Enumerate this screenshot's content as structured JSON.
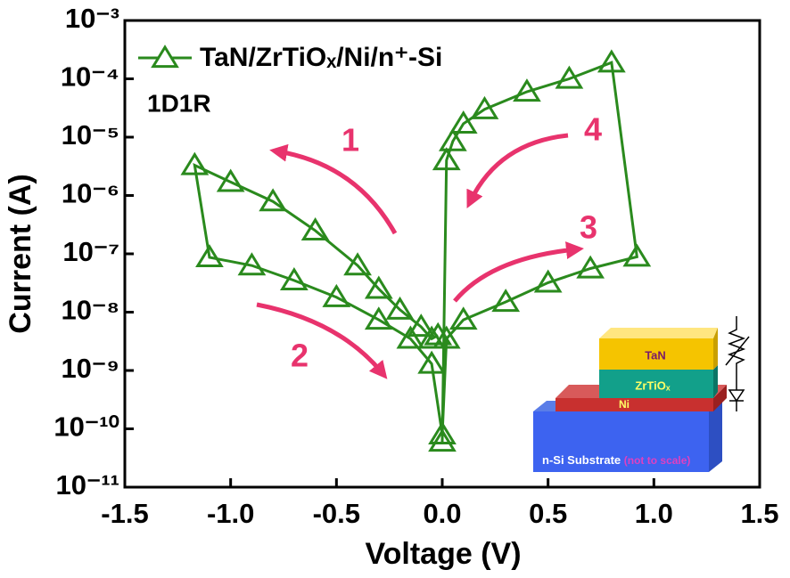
{
  "chart_data": {
    "type": "line",
    "xlabel": "Voltage (V)",
    "ylabel": "Current (A)",
    "log_y": true,
    "xlim": [
      -1.5,
      1.5
    ],
    "xticks": [
      -1.5,
      {
        "value": -1,
        "label": "-1.0"
      },
      -0.5,
      {
        "value": 0,
        "label": "0.0"
      },
      0.5,
      {
        "value": 1,
        "label": "1.0"
      },
      1.5
    ],
    "ylim": [
      1e-11,
      0.001
    ],
    "yticks": [
      {
        "value": 1e-11,
        "label": "10⁻¹¹"
      },
      {
        "value": 1e-10,
        "label": "10⁻¹⁰"
      },
      {
        "value": 1e-09,
        "label": "10⁻⁹"
      },
      {
        "value": 1e-08,
        "label": "10⁻⁸"
      },
      {
        "value": 1e-07,
        "label": "10⁻⁷"
      },
      {
        "value": 1e-06,
        "label": "10⁻⁶"
      },
      {
        "value": 1e-05,
        "label": "10⁻⁵"
      },
      {
        "value": 0.0001,
        "label": "10⁻⁴"
      },
      {
        "value": 0.001,
        "label": "10⁻³"
      }
    ],
    "series": [
      {
        "name": "TaN/ZrTiOₓ/Ni/n⁺-Si",
        "color": "#2a8a1d",
        "marker": "triangle",
        "x": [
          -0.02,
          -0.05,
          -0.1,
          -0.2,
          -0.3,
          -0.4,
          -0.6,
          -0.8,
          -1.0,
          -1.17,
          -1.1,
          -0.9,
          -0.7,
          -0.5,
          -0.3,
          -0.15,
          -0.05,
          0.0,
          0.02,
          0.1,
          0.3,
          0.5,
          0.7,
          0.92,
          0.8,
          0.6,
          0.4,
          0.2,
          0.1,
          0.05,
          0.02,
          0.0
        ],
        "values": [
          4e-09,
          3.5e-09,
          5.6e-09,
          1.1e-08,
          2.5e-08,
          6.3e-08,
          2.5e-07,
          7.9e-07,
          1.7e-06,
          3.3e-06,
          8.7e-08,
          6.3e-08,
          3.5e-08,
          1.8e-08,
          7.4e-09,
          3.5e-09,
          1.3e-09,
          8e-11,
          3.5e-09,
          7.4e-09,
          1.5e-08,
          3.2e-08,
          5.6e-08,
          8.9e-08,
          0.00019,
          0.0001,
          6e-05,
          3e-05,
          1.7e-05,
          8.5e-06,
          4e-06,
          6e-11
        ]
      }
    ],
    "annotations": {
      "device": "1D1R",
      "sweep1": "1",
      "sweep2": "2",
      "sweep3": "3",
      "sweep4": "4"
    },
    "inset": {
      "top": "TaN",
      "middle": "ZrTiOₓ",
      "bottom": "Ni",
      "substrate": "n-Si Substrate",
      "note": "(not to scale)"
    }
  }
}
